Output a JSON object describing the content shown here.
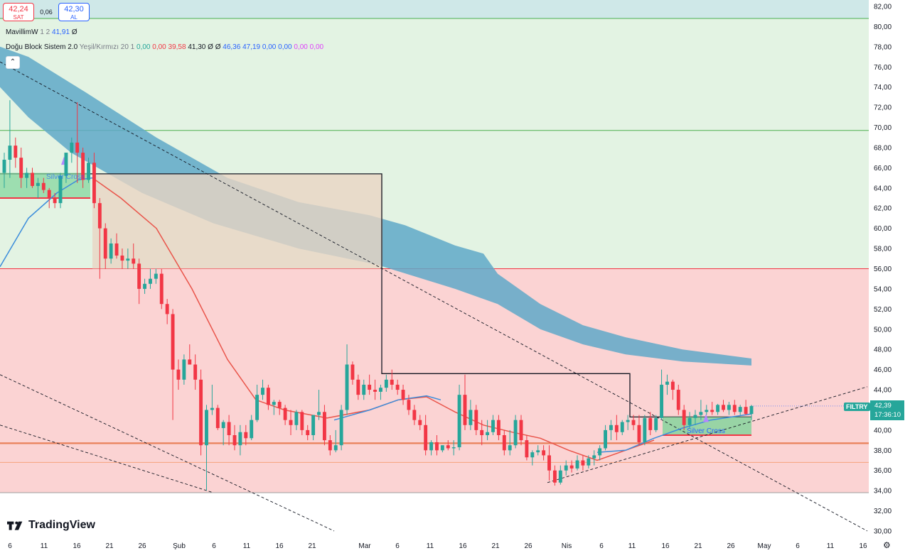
{
  "trade": {
    "sell_price": "42,24",
    "sell_label": "SAT",
    "spread": "0,06",
    "buy_price": "42,30",
    "buy_label": "AL"
  },
  "indicators": {
    "line1": {
      "name": "MavillimW",
      "params": "1 2",
      "value": "41,91",
      "extra": "Ø"
    },
    "line2": {
      "name": "Doğu Block Sistem 2.0",
      "params": "Yeşil/Kırmızı 20 1",
      "values": [
        {
          "text": "0,00",
          "color": "#26a69a"
        },
        {
          "text": "0,00",
          "color": "#f23645"
        },
        {
          "text": "39,58",
          "color": "#f23645"
        },
        {
          "text": "41,30",
          "color": "#131722"
        },
        {
          "text": "Ø",
          "color": "#131722"
        },
        {
          "text": "Ø",
          "color": "#131722"
        },
        {
          "text": "46,36",
          "color": "#2962ff"
        },
        {
          "text": "47,19",
          "color": "#2962ff"
        },
        {
          "text": "0,00",
          "color": "#2962ff"
        },
        {
          "text": "0,00",
          "color": "#2962ff"
        },
        {
          "text": "0,00",
          "color": "#e040fb"
        },
        {
          "text": "0,00",
          "color": "#e040fb"
        }
      ]
    },
    "collapse_icon": "chevron-up-icon"
  },
  "price_axis": {
    "labels": [
      "82,00",
      "80,00",
      "78,00",
      "76,00",
      "74,00",
      "72,00",
      "70,00",
      "68,00",
      "66,00",
      "64,00",
      "62,00",
      "60,00",
      "58,00",
      "56,00",
      "54,00",
      "52,00",
      "50,00",
      "48,00",
      "46,00",
      "44,00",
      "42,00",
      "40,00",
      "38,00",
      "36,00",
      "34,00",
      "32,00",
      "30,00"
    ],
    "current_price": "42,39",
    "countdown": "17:36:10",
    "symbol": "FILTRY"
  },
  "time_axis": {
    "labels": [
      "6",
      "11",
      "16",
      "21",
      "26",
      "Şub",
      "6",
      "11",
      "16",
      "21",
      "Mar",
      "6",
      "11",
      "16",
      "21",
      "26",
      "Nis",
      "6",
      "11",
      "16",
      "21",
      "26",
      "May",
      "6",
      "11",
      "16"
    ]
  },
  "annotations": {
    "silver_cross_1": "Silver Cross",
    "silver_cross_2": "Silver Cross"
  },
  "brand": {
    "logo_text": "TradingView"
  },
  "colors": {
    "up": "#26a69a",
    "down": "#f23645",
    "bull_zone": "#e3f3e3",
    "bear_zone": "#fbd3d3",
    "cloud": "#5fa8c8",
    "blue_ma": "#3c8ddb",
    "red_ma": "#e9544a"
  },
  "chart_data": {
    "type": "candlestick",
    "symbol": "FILTRY",
    "ylim": [
      30,
      82
    ],
    "x_ticks": [
      "6",
      "11",
      "16",
      "21",
      "26",
      "Şub",
      "6",
      "11",
      "16",
      "21",
      "Mar",
      "6",
      "11",
      "16",
      "21",
      "26",
      "Nis",
      "6",
      "11",
      "16",
      "21",
      "26",
      "May",
      "6",
      "11",
      "16"
    ],
    "candles": [
      {
        "o": 65.5,
        "h": 67.5,
        "l": 64.0,
        "c": 66.8
      },
      {
        "o": 66.8,
        "h": 72.7,
        "l": 65.0,
        "c": 68.2
      },
      {
        "o": 68.2,
        "h": 69.0,
        "l": 66.0,
        "c": 67.0
      },
      {
        "o": 67.0,
        "h": 68.0,
        "l": 64.0,
        "c": 65.0
      },
      {
        "o": 65.0,
        "h": 66.0,
        "l": 64.0,
        "c": 65.5
      },
      {
        "o": 65.5,
        "h": 66.0,
        "l": 64.0,
        "c": 64.2
      },
      {
        "o": 64.2,
        "h": 65.0,
        "l": 63.0,
        "c": 64.5
      },
      {
        "o": 64.5,
        "h": 65.0,
        "l": 63.5,
        "c": 63.8
      },
      {
        "o": 63.8,
        "h": 64.0,
        "l": 62.0,
        "c": 63.0
      },
      {
        "o": 63.0,
        "h": 63.5,
        "l": 62.0,
        "c": 62.5
      },
      {
        "o": 62.5,
        "h": 65.5,
        "l": 62.0,
        "c": 65.2
      },
      {
        "o": 65.2,
        "h": 67.0,
        "l": 64.5,
        "c": 67.5
      },
      {
        "o": 67.5,
        "h": 69.0,
        "l": 66.5,
        "c": 68.5
      },
      {
        "o": 68.5,
        "h": 72.5,
        "l": 64.5,
        "c": 67.5
      },
      {
        "o": 67.5,
        "h": 68.0,
        "l": 64.0,
        "c": 64.8
      },
      {
        "o": 64.8,
        "h": 67.0,
        "l": 64.5,
        "c": 66.5
      },
      {
        "o": 66.5,
        "h": 67.5,
        "l": 62.0,
        "c": 62.5
      },
      {
        "o": 62.5,
        "h": 63.0,
        "l": 55.0,
        "c": 60.0
      },
      {
        "o": 60.0,
        "h": 60.5,
        "l": 56.0,
        "c": 57.0
      },
      {
        "o": 57.0,
        "h": 59.0,
        "l": 56.5,
        "c": 58.5
      },
      {
        "o": 58.5,
        "h": 59.5,
        "l": 57.0,
        "c": 57.3
      },
      {
        "o": 57.3,
        "h": 58.0,
        "l": 56.0,
        "c": 56.8
      },
      {
        "o": 56.8,
        "h": 58.0,
        "l": 56.0,
        "c": 57.0
      },
      {
        "o": 57.0,
        "h": 58.5,
        "l": 56.0,
        "c": 56.5
      },
      {
        "o": 56.5,
        "h": 57.0,
        "l": 52.5,
        "c": 54.0
      },
      {
        "o": 54.0,
        "h": 55.0,
        "l": 53.5,
        "c": 54.5
      },
      {
        "o": 54.5,
        "h": 56.0,
        "l": 54.0,
        "c": 55.0
      },
      {
        "o": 55.0,
        "h": 56.0,
        "l": 54.5,
        "c": 55.5
      },
      {
        "o": 55.5,
        "h": 56.0,
        "l": 52.0,
        "c": 52.5
      },
      {
        "o": 52.5,
        "h": 53.0,
        "l": 50.5,
        "c": 51.5
      },
      {
        "o": 51.5,
        "h": 52.0,
        "l": 41.0,
        "c": 46.0
      },
      {
        "o": 46.0,
        "h": 47.0,
        "l": 44.0,
        "c": 45.0
      },
      {
        "o": 45.0,
        "h": 47.5,
        "l": 44.5,
        "c": 47.0
      },
      {
        "o": 47.0,
        "h": 48.5,
        "l": 46.5,
        "c": 46.5
      },
      {
        "o": 46.5,
        "h": 47.5,
        "l": 44.0,
        "c": 45.0
      },
      {
        "o": 45.0,
        "h": 46.0,
        "l": 37.5,
        "c": 38.5
      },
      {
        "o": 38.5,
        "h": 42.5,
        "l": 34.0,
        "c": 42.0
      },
      {
        "o": 42.0,
        "h": 44.5,
        "l": 41.5,
        "c": 42.2
      },
      {
        "o": 42.2,
        "h": 42.5,
        "l": 40.0,
        "c": 40.2
      },
      {
        "o": 40.2,
        "h": 41.0,
        "l": 38.5,
        "c": 40.8
      },
      {
        "o": 40.8,
        "h": 41.5,
        "l": 38.5,
        "c": 39.5
      },
      {
        "o": 39.5,
        "h": 40.5,
        "l": 38.0,
        "c": 38.5
      },
      {
        "o": 38.5,
        "h": 40.5,
        "l": 37.5,
        "c": 39.8
      },
      {
        "o": 39.8,
        "h": 40.5,
        "l": 38.5,
        "c": 39.2
      },
      {
        "o": 39.2,
        "h": 41.5,
        "l": 39.0,
        "c": 41.0
      },
      {
        "o": 41.0,
        "h": 44.5,
        "l": 40.8,
        "c": 43.5
      },
      {
        "o": 43.5,
        "h": 45.0,
        "l": 43.0,
        "c": 44.2
      },
      {
        "o": 44.2,
        "h": 44.5,
        "l": 42.0,
        "c": 42.5
      },
      {
        "o": 42.5,
        "h": 43.0,
        "l": 41.5,
        "c": 42.8
      },
      {
        "o": 42.8,
        "h": 43.0,
        "l": 41.5,
        "c": 42.2
      },
      {
        "o": 42.2,
        "h": 42.5,
        "l": 40.5,
        "c": 41.0
      },
      {
        "o": 41.0,
        "h": 42.0,
        "l": 39.5,
        "c": 40.5
      },
      {
        "o": 40.5,
        "h": 42.0,
        "l": 40.0,
        "c": 41.8
      },
      {
        "o": 41.8,
        "h": 42.0,
        "l": 39.5,
        "c": 40.0
      },
      {
        "o": 40.0,
        "h": 40.5,
        "l": 39.0,
        "c": 39.5
      },
      {
        "o": 39.5,
        "h": 41.5,
        "l": 39.0,
        "c": 41.5
      },
      {
        "o": 41.5,
        "h": 44.0,
        "l": 41.0,
        "c": 41.8
      },
      {
        "o": 41.8,
        "h": 42.5,
        "l": 38.5,
        "c": 39.0
      },
      {
        "o": 39.0,
        "h": 39.5,
        "l": 37.5,
        "c": 38.0
      },
      {
        "o": 38.0,
        "h": 40.0,
        "l": 37.8,
        "c": 38.5
      },
      {
        "o": 38.5,
        "h": 42.5,
        "l": 38.0,
        "c": 42.0
      },
      {
        "o": 42.0,
        "h": 48.5,
        "l": 41.5,
        "c": 46.5
      },
      {
        "o": 46.5,
        "h": 46.8,
        "l": 44.5,
        "c": 45.0
      },
      {
        "o": 45.0,
        "h": 45.5,
        "l": 43.0,
        "c": 43.5
      },
      {
        "o": 43.5,
        "h": 45.0,
        "l": 43.0,
        "c": 44.5
      },
      {
        "o": 44.5,
        "h": 45.5,
        "l": 43.5,
        "c": 44.0
      },
      {
        "o": 44.0,
        "h": 45.0,
        "l": 43.0,
        "c": 43.8
      },
      {
        "o": 43.8,
        "h": 44.5,
        "l": 43.0,
        "c": 44.2
      },
      {
        "o": 44.2,
        "h": 45.5,
        "l": 43.8,
        "c": 45.0
      },
      {
        "o": 45.0,
        "h": 46.0,
        "l": 44.0,
        "c": 44.5
      },
      {
        "o": 44.5,
        "h": 45.0,
        "l": 43.5,
        "c": 44.0
      },
      {
        "o": 44.0,
        "h": 44.5,
        "l": 42.5,
        "c": 43.0
      },
      {
        "o": 43.0,
        "h": 43.5,
        "l": 41.5,
        "c": 42.0
      },
      {
        "o": 42.0,
        "h": 42.5,
        "l": 40.5,
        "c": 41.0
      },
      {
        "o": 41.0,
        "h": 41.5,
        "l": 40.0,
        "c": 40.5
      },
      {
        "o": 40.5,
        "h": 41.5,
        "l": 37.5,
        "c": 38.0
      },
      {
        "o": 38.0,
        "h": 39.0,
        "l": 37.5,
        "c": 38.8
      },
      {
        "o": 38.8,
        "h": 39.5,
        "l": 37.5,
        "c": 38.0
      },
      {
        "o": 38.0,
        "h": 38.5,
        "l": 37.8,
        "c": 38.5
      },
      {
        "o": 38.5,
        "h": 39.0,
        "l": 38.0,
        "c": 38.2
      },
      {
        "o": 38.2,
        "h": 39.0,
        "l": 37.5,
        "c": 38.3
      },
      {
        "o": 38.3,
        "h": 44.5,
        "l": 38.0,
        "c": 43.5
      },
      {
        "o": 43.5,
        "h": 45.5,
        "l": 40.0,
        "c": 40.5
      },
      {
        "o": 40.5,
        "h": 43.0,
        "l": 40.0,
        "c": 42.0
      },
      {
        "o": 42.0,
        "h": 42.5,
        "l": 39.5,
        "c": 40.0
      },
      {
        "o": 40.0,
        "h": 41.0,
        "l": 38.5,
        "c": 39.5
      },
      {
        "o": 39.5,
        "h": 41.0,
        "l": 39.0,
        "c": 39.8
      },
      {
        "o": 39.8,
        "h": 41.5,
        "l": 39.5,
        "c": 41.0
      },
      {
        "o": 41.0,
        "h": 41.5,
        "l": 39.0,
        "c": 39.5
      },
      {
        "o": 39.5,
        "h": 40.0,
        "l": 37.5,
        "c": 38.0
      },
      {
        "o": 38.0,
        "h": 40.0,
        "l": 37.5,
        "c": 38.5
      },
      {
        "o": 38.5,
        "h": 41.5,
        "l": 38.2,
        "c": 41.0
      },
      {
        "o": 41.0,
        "h": 41.5,
        "l": 38.5,
        "c": 39.0
      },
      {
        "o": 39.0,
        "h": 39.5,
        "l": 37.0,
        "c": 37.3
      },
      {
        "o": 37.3,
        "h": 38.0,
        "l": 36.5,
        "c": 37.8
      },
      {
        "o": 37.8,
        "h": 38.5,
        "l": 37.5,
        "c": 38.0
      },
      {
        "o": 38.0,
        "h": 38.5,
        "l": 37.0,
        "c": 37.5
      },
      {
        "o": 37.5,
        "h": 38.5,
        "l": 35.0,
        "c": 36.0
      },
      {
        "o": 36.0,
        "h": 36.5,
        "l": 34.5,
        "c": 34.8
      },
      {
        "o": 34.8,
        "h": 36.5,
        "l": 34.6,
        "c": 36.0
      },
      {
        "o": 36.0,
        "h": 37.0,
        "l": 35.5,
        "c": 36.5
      },
      {
        "o": 36.5,
        "h": 37.0,
        "l": 35.8,
        "c": 36.2
      },
      {
        "o": 36.2,
        "h": 37.5,
        "l": 36.0,
        "c": 37.0
      },
      {
        "o": 37.0,
        "h": 37.5,
        "l": 36.0,
        "c": 36.5
      },
      {
        "o": 36.5,
        "h": 37.5,
        "l": 36.2,
        "c": 37.2
      },
      {
        "o": 37.2,
        "h": 38.0,
        "l": 36.5,
        "c": 37.5
      },
      {
        "o": 37.5,
        "h": 38.5,
        "l": 37.0,
        "c": 38.2
      },
      {
        "o": 38.2,
        "h": 40.5,
        "l": 38.0,
        "c": 40.0
      },
      {
        "o": 40.0,
        "h": 41.0,
        "l": 39.0,
        "c": 40.5
      },
      {
        "o": 40.5,
        "h": 41.5,
        "l": 39.0,
        "c": 39.8
      },
      {
        "o": 39.8,
        "h": 41.0,
        "l": 39.5,
        "c": 40.8
      },
      {
        "o": 40.8,
        "h": 41.5,
        "l": 40.0,
        "c": 41.0
      },
      {
        "o": 41.0,
        "h": 41.5,
        "l": 40.0,
        "c": 40.5
      },
      {
        "o": 40.5,
        "h": 41.5,
        "l": 38.5,
        "c": 38.8
      },
      {
        "o": 38.8,
        "h": 41.5,
        "l": 38.5,
        "c": 41.2
      },
      {
        "o": 41.2,
        "h": 41.8,
        "l": 39.5,
        "c": 40.0
      },
      {
        "o": 40.0,
        "h": 41.5,
        "l": 39.8,
        "c": 41.2
      },
      {
        "o": 41.2,
        "h": 46.0,
        "l": 41.0,
        "c": 44.5
      },
      {
        "o": 44.5,
        "h": 45.5,
        "l": 43.5,
        "c": 44.8
      },
      {
        "o": 44.8,
        "h": 45.0,
        "l": 43.0,
        "c": 44.0
      },
      {
        "o": 44.0,
        "h": 44.5,
        "l": 41.5,
        "c": 42.0
      },
      {
        "o": 42.0,
        "h": 42.5,
        "l": 40.0,
        "c": 40.5
      },
      {
        "o": 40.5,
        "h": 41.8,
        "l": 40.2,
        "c": 41.2
      },
      {
        "o": 41.2,
        "h": 42.0,
        "l": 40.5,
        "c": 41.5
      },
      {
        "o": 41.5,
        "h": 43.0,
        "l": 41.0,
        "c": 41.8
      },
      {
        "o": 41.8,
        "h": 42.5,
        "l": 41.5,
        "c": 42.0
      },
      {
        "o": 42.0,
        "h": 42.8,
        "l": 41.5,
        "c": 41.8
      },
      {
        "o": 41.8,
        "h": 42.6,
        "l": 41.5,
        "c": 42.5
      },
      {
        "o": 42.5,
        "h": 43.0,
        "l": 41.8,
        "c": 42.0
      },
      {
        "o": 42.0,
        "h": 42.8,
        "l": 41.5,
        "c": 42.5
      },
      {
        "o": 42.5,
        "h": 43.0,
        "l": 41.5,
        "c": 41.8
      },
      {
        "o": 41.8,
        "h": 42.5,
        "l": 41.5,
        "c": 42.3
      },
      {
        "o": 42.3,
        "h": 43.0,
        "l": 41.5,
        "c": 41.6
      },
      {
        "o": 41.6,
        "h": 42.5,
        "l": 41.0,
        "c": 42.39
      }
    ],
    "current_price": 42.39,
    "zones": [
      {
        "from": 80.8,
        "to": 82.8,
        "color": "teal"
      },
      {
        "from": 56.0,
        "to": 80.8,
        "color": "green"
      },
      {
        "from": 33.8,
        "to": 56.0,
        "color": "red"
      }
    ],
    "horizontal_levels": [
      80.8,
      69.7,
      56.0,
      38.7,
      36.8,
      33.8
    ],
    "resistance_steps": [
      65.4,
      45.6,
      41.3
    ],
    "annotations": [
      "Silver Cross",
      "Silver Cross"
    ],
    "grid": false
  }
}
